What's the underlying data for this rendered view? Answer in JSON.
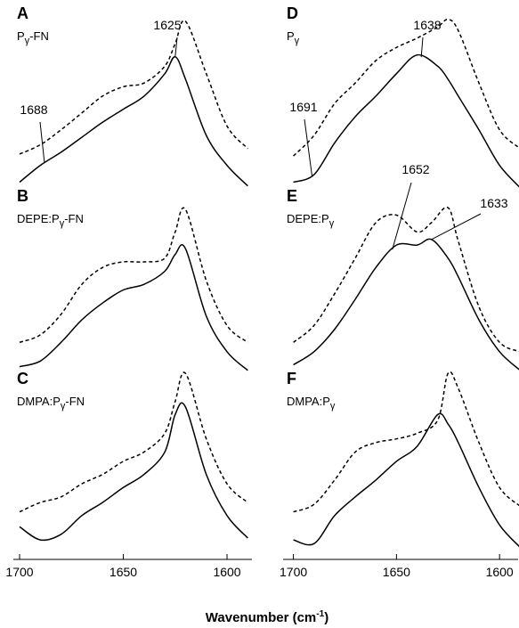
{
  "x_label": [
    "Wavenumber (cm",
    "-1",
    ")"
  ],
  "chart_data": [
    {
      "type": "line",
      "label": "A",
      "sample": [
        "P",
        "γ",
        "-FN"
      ],
      "x": [
        1700,
        1690,
        1680,
        1670,
        1660,
        1650,
        1640,
        1630,
        1625,
        1620,
        1610,
        1600,
        1590
      ],
      "xlim": [
        1703,
        1588
      ],
      "ylim": [
        0,
        1
      ],
      "series": [
        {
          "color": "#000000",
          "dash": false,
          "values": [
            0.05,
            0.14,
            0.21,
            0.29,
            0.37,
            0.44,
            0.51,
            0.63,
            0.72,
            0.6,
            0.3,
            0.14,
            0.03
          ]
        },
        {
          "color": "#000000",
          "dash": true,
          "values": [
            0.2,
            0.25,
            0.33,
            0.42,
            0.51,
            0.56,
            0.58,
            0.67,
            0.79,
            0.91,
            0.63,
            0.35,
            0.23
          ]
        }
      ],
      "annotations": [
        1625,
        1688
      ]
    },
    {
      "type": "line",
      "label": "B",
      "sample": [
        "DEPE:P",
        "γ",
        "-FN"
      ],
      "x": [
        1700,
        1690,
        1680,
        1670,
        1660,
        1650,
        1640,
        1630,
        1625,
        1620,
        1610,
        1600,
        1590
      ],
      "xlim": [
        1703,
        1588
      ],
      "ylim": [
        0,
        1
      ],
      "series": [
        {
          "color": "#000000",
          "dash": false,
          "values": [
            0.04,
            0.07,
            0.17,
            0.29,
            0.38,
            0.45,
            0.48,
            0.55,
            0.64,
            0.67,
            0.31,
            0.12,
            0.02
          ]
        },
        {
          "color": "#000000",
          "dash": true,
          "values": [
            0.17,
            0.21,
            0.32,
            0.48,
            0.57,
            0.6,
            0.6,
            0.62,
            0.76,
            0.88,
            0.5,
            0.26,
            0.17
          ]
        }
      ]
    },
    {
      "type": "line",
      "label": "C",
      "sample": [
        "DMPA:P",
        "γ",
        "-FN"
      ],
      "x": [
        1700,
        1690,
        1680,
        1670,
        1660,
        1650,
        1640,
        1630,
        1625,
        1620,
        1610,
        1600,
        1590
      ],
      "xlim": [
        1703,
        1588
      ],
      "ylim": [
        0,
        1
      ],
      "series": [
        {
          "color": "#000000",
          "dash": false,
          "values": [
            0.16,
            0.09,
            0.12,
            0.22,
            0.29,
            0.37,
            0.44,
            0.56,
            0.76,
            0.8,
            0.44,
            0.22,
            0.1
          ]
        },
        {
          "color": "#000000",
          "dash": true,
          "values": [
            0.24,
            0.29,
            0.32,
            0.39,
            0.44,
            0.51,
            0.56,
            0.66,
            0.83,
            0.98,
            0.63,
            0.39,
            0.29
          ]
        }
      ],
      "xticks": [
        1700,
        1650,
        1600
      ]
    },
    {
      "type": "line",
      "label": "D",
      "sample": [
        "P",
        "γ"
      ],
      "x": [
        1700,
        1690,
        1680,
        1670,
        1660,
        1650,
        1640,
        1630,
        1625,
        1620,
        1610,
        1600,
        1590
      ],
      "xlim": [
        1705,
        1591
      ],
      "ylim": [
        0,
        1
      ],
      "series": [
        {
          "color": "#000000",
          "dash": false,
          "values": [
            0.05,
            0.09,
            0.26,
            0.4,
            0.51,
            0.63,
            0.73,
            0.67,
            0.6,
            0.51,
            0.33,
            0.14,
            0.02
          ]
        },
        {
          "color": "#000000",
          "dash": true,
          "values": [
            0.19,
            0.3,
            0.47,
            0.58,
            0.7,
            0.77,
            0.82,
            0.88,
            0.92,
            0.86,
            0.58,
            0.33,
            0.23
          ]
        }
      ],
      "annotations": [
        1638,
        1691
      ]
    },
    {
      "type": "line",
      "label": "E",
      "sample": [
        "DEPE:P",
        "γ"
      ],
      "x": [
        1700,
        1690,
        1680,
        1670,
        1660,
        1650,
        1640,
        1633,
        1625,
        1620,
        1610,
        1600,
        1590
      ],
      "xlim": [
        1705,
        1591
      ],
      "ylim": [
        0,
        1
      ],
      "series": [
        {
          "color": "#000000",
          "dash": false,
          "values": [
            0.05,
            0.12,
            0.24,
            0.4,
            0.57,
            0.69,
            0.69,
            0.72,
            0.62,
            0.52,
            0.29,
            0.12,
            0.02
          ]
        },
        {
          "color": "#000000",
          "dash": true,
          "values": [
            0.17,
            0.26,
            0.43,
            0.62,
            0.81,
            0.85,
            0.76,
            0.81,
            0.89,
            0.71,
            0.36,
            0.17,
            0.12
          ]
        }
      ],
      "annotations": [
        1652,
        1633
      ]
    },
    {
      "type": "line",
      "label": "F",
      "sample": [
        "DMPA:P",
        "γ"
      ],
      "x": [
        1700,
        1690,
        1680,
        1670,
        1660,
        1650,
        1640,
        1630,
        1625,
        1620,
        1610,
        1600,
        1590
      ],
      "xlim": [
        1705,
        1591
      ],
      "ylim": [
        0,
        1
      ],
      "series": [
        {
          "color": "#000000",
          "dash": false,
          "values": [
            0.09,
            0.07,
            0.22,
            0.32,
            0.41,
            0.51,
            0.59,
            0.76,
            0.71,
            0.61,
            0.37,
            0.17,
            0.05
          ]
        },
        {
          "color": "#000000",
          "dash": true,
          "values": [
            0.24,
            0.28,
            0.41,
            0.56,
            0.61,
            0.63,
            0.66,
            0.73,
            0.98,
            0.9,
            0.61,
            0.37,
            0.27
          ]
        }
      ],
      "xticks": [
        1700,
        1650,
        1600
      ]
    }
  ]
}
